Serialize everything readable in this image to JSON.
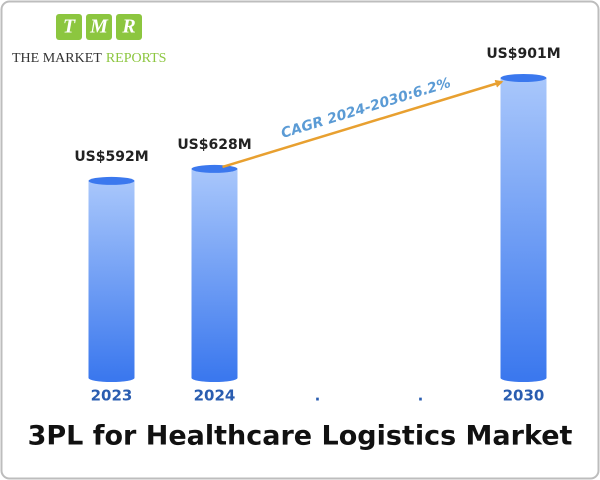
{
  "logo": {
    "letters": [
      "T",
      "M",
      "R"
    ],
    "name_dark": "THE MARKET",
    "name_green": "REPORTS"
  },
  "chart_data": {
    "type": "bar",
    "title": "3PL for Healthcare Logistics Market",
    "categories": [
      "2023",
      "2024",
      ".",
      ".",
      "2030"
    ],
    "values": [
      592,
      628,
      null,
      null,
      901
    ],
    "value_labels": [
      "US$592M",
      "US$628M",
      null,
      null,
      "US$901M"
    ],
    "color": "#3b78ee",
    "annotation": "CAGR 2024-2030:6.2%"
  }
}
